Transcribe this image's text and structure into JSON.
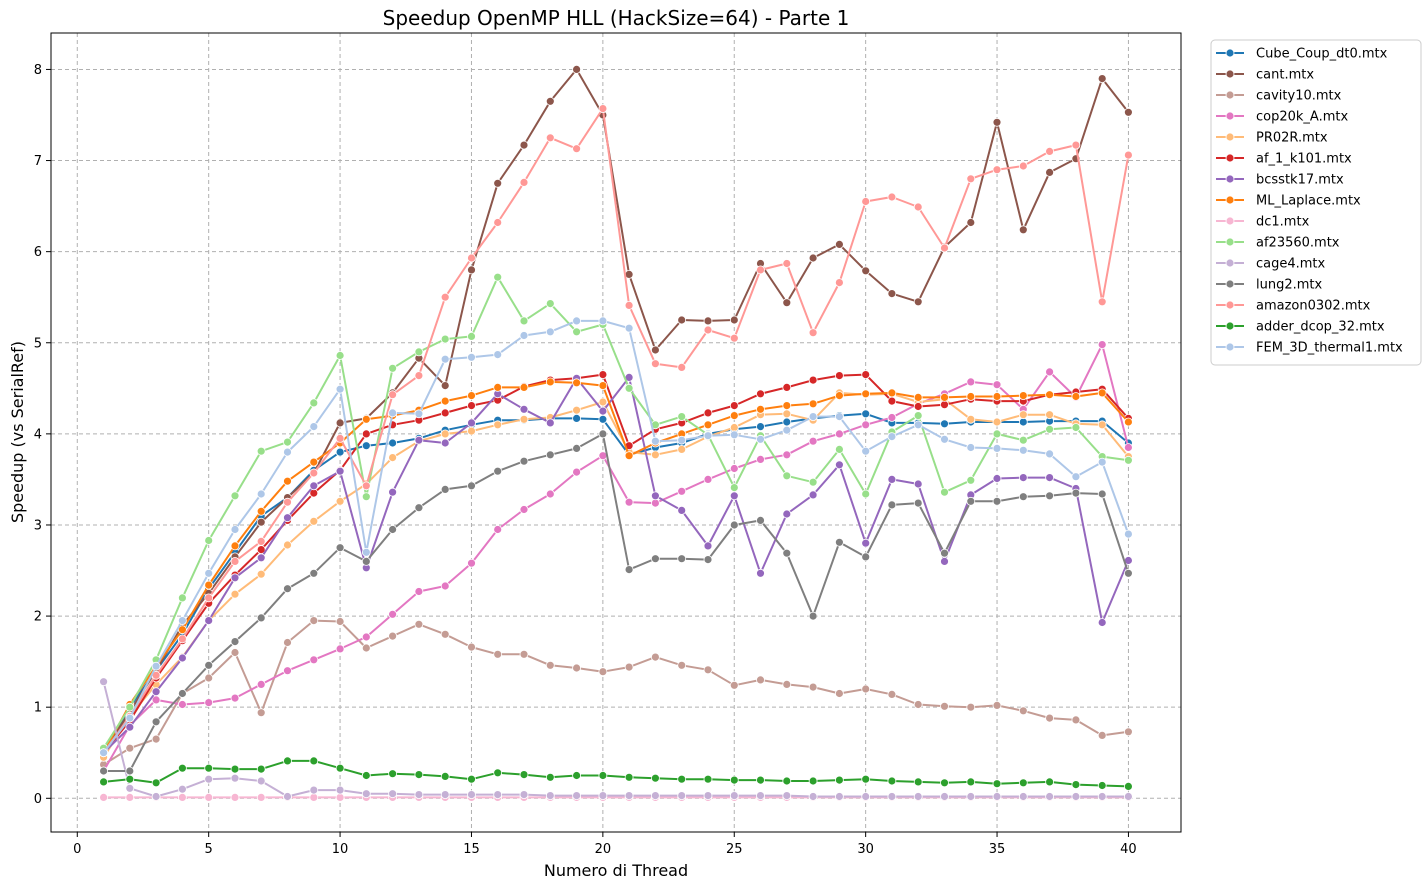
{
  "chart_data": {
    "type": "line",
    "title": "Speedup OpenMP HLL (HackSize=64) - Parte 1",
    "xlabel": "Numero di Thread",
    "ylabel": "Speedup (vs SerialRef)",
    "xlim": [
      -1,
      42
    ],
    "ylim": [
      -0.37,
      8.4
    ],
    "xticks": [
      0,
      5,
      10,
      15,
      20,
      25,
      30,
      35,
      40
    ],
    "yticks": [
      0,
      1,
      2,
      3,
      4,
      5,
      6,
      7,
      8
    ],
    "grid": true,
    "legend_position": "outside-right",
    "x": [
      1,
      2,
      3,
      4,
      5,
      6,
      7,
      8,
      9,
      10,
      11,
      12,
      13,
      14,
      15,
      16,
      17,
      18,
      19,
      20,
      21,
      22,
      23,
      24,
      25,
      26,
      27,
      28,
      29,
      30,
      31,
      32,
      33,
      34,
      35,
      36,
      37,
      38,
      39,
      40
    ],
    "series": [
      {
        "name": "Cube_Coup_dt0.mtx",
        "color": "#1f77b4",
        "values": [
          0.5,
          1.0,
          1.4,
          1.8,
          2.3,
          2.7,
          3.1,
          3.3,
          3.6,
          3.8,
          3.87,
          3.9,
          3.95,
          4.04,
          4.1,
          4.15,
          4.15,
          4.17,
          4.17,
          4.16,
          3.77,
          3.85,
          3.9,
          4.0,
          4.05,
          4.08,
          4.13,
          4.17,
          4.2,
          4.22,
          4.12,
          4.12,
          4.11,
          4.13,
          4.13,
          4.13,
          4.14,
          4.14,
          4.14,
          3.9
        ]
      },
      {
        "name": "cant.mtx",
        "color": "#8c564b",
        "values": [
          0.5,
          0.95,
          1.4,
          1.9,
          2.25,
          2.65,
          3.03,
          3.3,
          3.57,
          4.12,
          4.17,
          4.45,
          4.83,
          4.53,
          5.8,
          6.75,
          7.17,
          7.65,
          8.0,
          7.5,
          5.75,
          4.92,
          5.25,
          5.24,
          5.25,
          5.87,
          5.44,
          5.93,
          6.08,
          5.79,
          5.54,
          5.45,
          6.05,
          6.32,
          7.42,
          6.24,
          6.87,
          7.02,
          7.9,
          7.53
        ]
      },
      {
        "name": "cavity10.mtx",
        "color": "#c49c94",
        "values": [
          0.37,
          0.55,
          0.65,
          1.15,
          1.32,
          1.6,
          0.94,
          1.71,
          1.95,
          1.94,
          1.65,
          1.78,
          1.91,
          1.8,
          1.66,
          1.58,
          1.58,
          1.46,
          1.43,
          1.39,
          1.44,
          1.55,
          1.46,
          1.41,
          1.24,
          1.3,
          1.25,
          1.22,
          1.15,
          1.2,
          1.14,
          1.03,
          1.01,
          1.0,
          1.02,
          0.96,
          0.88,
          0.86,
          0.69,
          0.73
        ]
      },
      {
        "name": "cop20k_A.mtx",
        "color": "#e377c2",
        "values": [
          0.3,
          0.8,
          1.08,
          1.03,
          1.05,
          1.1,
          1.25,
          1.4,
          1.52,
          1.64,
          1.77,
          2.02,
          2.27,
          2.33,
          2.58,
          2.95,
          3.17,
          3.34,
          3.58,
          3.76,
          3.25,
          3.24,
          3.37,
          3.5,
          3.62,
          3.72,
          3.77,
          3.92,
          4.0,
          4.1,
          4.18,
          4.33,
          4.44,
          4.57,
          4.54,
          4.27,
          4.68,
          4.4,
          4.98,
          3.85
        ]
      },
      {
        "name": "PR02R.mtx",
        "color": "#ffbb78",
        "values": [
          0.45,
          0.9,
          1.25,
          1.55,
          1.95,
          2.24,
          2.46,
          2.78,
          3.04,
          3.26,
          3.45,
          3.74,
          3.92,
          4.0,
          4.03,
          4.1,
          4.16,
          4.18,
          4.26,
          4.35,
          3.8,
          3.77,
          3.83,
          3.97,
          4.07,
          4.21,
          4.22,
          4.15,
          4.45,
          4.43,
          4.44,
          4.35,
          4.38,
          4.16,
          4.13,
          4.21,
          4.21,
          4.11,
          4.1,
          3.75
        ]
      },
      {
        "name": "af_1_k101.mtx",
        "color": "#d62728",
        "values": [
          0.5,
          0.85,
          1.32,
          1.73,
          2.14,
          2.45,
          2.73,
          3.05,
          3.35,
          3.6,
          4.0,
          4.1,
          4.15,
          4.23,
          4.31,
          4.37,
          4.52,
          4.59,
          4.61,
          4.65,
          3.87,
          4.05,
          4.12,
          4.23,
          4.31,
          4.44,
          4.51,
          4.59,
          4.64,
          4.65,
          4.36,
          4.3,
          4.32,
          4.38,
          4.36,
          4.36,
          4.43,
          4.46,
          4.49,
          4.17
        ]
      },
      {
        "name": "bcsstk17.mtx",
        "color": "#9467bd",
        "values": [
          0.5,
          0.78,
          1.17,
          1.54,
          1.95,
          2.42,
          2.64,
          3.08,
          3.43,
          3.59,
          2.53,
          3.36,
          3.93,
          3.9,
          4.12,
          4.44,
          4.27,
          4.12,
          4.61,
          4.25,
          4.62,
          3.32,
          3.16,
          2.77,
          3.32,
          2.47,
          3.12,
          3.33,
          3.66,
          2.8,
          3.5,
          3.45,
          2.6,
          3.33,
          3.51,
          3.52,
          3.52,
          3.4,
          1.93,
          2.61
        ]
      },
      {
        "name": "ML_Laplace.mtx",
        "color": "#ff7f0e",
        "values": [
          0.5,
          1.03,
          1.45,
          1.85,
          2.34,
          2.77,
          3.15,
          3.48,
          3.69,
          3.9,
          4.16,
          4.2,
          4.26,
          4.36,
          4.42,
          4.51,
          4.51,
          4.57,
          4.56,
          4.53,
          3.76,
          3.9,
          4.0,
          4.1,
          4.2,
          4.27,
          4.31,
          4.33,
          4.42,
          4.44,
          4.45,
          4.4,
          4.4,
          4.41,
          4.41,
          4.42,
          4.43,
          4.41,
          4.45,
          4.13
        ]
      },
      {
        "name": "dc1.mtx",
        "color": "#f7b6d2",
        "values": [
          0.01,
          0.01,
          0.01,
          0.01,
          0.01,
          0.01,
          0.01,
          0.01,
          0.01,
          0.01,
          0.01,
          0.01,
          0.01,
          0.01,
          0.01,
          0.01,
          0.01,
          0.01,
          0.01,
          0.01,
          0.01,
          0.01,
          0.01,
          0.01,
          0.01,
          0.01,
          0.01,
          0.01,
          0.01,
          0.01,
          0.01,
          0.01,
          0.01,
          0.01,
          0.01,
          0.01,
          0.01,
          0.01,
          0.01,
          0.01
        ]
      },
      {
        "name": "af23560.mtx",
        "color": "#98df8a",
        "values": [
          0.55,
          1.0,
          1.52,
          2.2,
          2.83,
          3.32,
          3.81,
          3.91,
          4.34,
          4.86,
          3.31,
          4.72,
          4.9,
          5.04,
          5.07,
          5.72,
          5.24,
          5.43,
          5.12,
          5.2,
          4.5,
          4.1,
          4.19,
          3.99,
          3.41,
          3.98,
          3.54,
          3.47,
          3.83,
          3.34,
          4.02,
          4.2,
          3.36,
          3.49,
          4.0,
          3.93,
          4.05,
          4.07,
          3.75,
          3.71
        ]
      },
      {
        "name": "cage4.mtx",
        "color": "#c5b0d5",
        "values": [
          1.28,
          0.11,
          0.02,
          0.1,
          0.21,
          0.22,
          0.19,
          0.02,
          0.09,
          0.09,
          0.05,
          0.05,
          0.04,
          0.04,
          0.04,
          0.04,
          0.04,
          0.03,
          0.03,
          0.03,
          0.03,
          0.03,
          0.03,
          0.03,
          0.03,
          0.03,
          0.03,
          0.02,
          0.02,
          0.02,
          0.02,
          0.02,
          0.02,
          0.02,
          0.02,
          0.02,
          0.02,
          0.02,
          0.02,
          0.02
        ]
      },
      {
        "name": "lung2.mtx",
        "color": "#7f7f7f",
        "values": [
          0.3,
          0.3,
          0.84,
          1.15,
          1.46,
          1.72,
          1.98,
          2.3,
          2.47,
          2.75,
          2.6,
          2.95,
          3.19,
          3.39,
          3.43,
          3.59,
          3.7,
          3.77,
          3.84,
          4.0,
          2.51,
          2.63,
          2.63,
          2.62,
          3.0,
          3.05,
          2.69,
          2.0,
          2.81,
          2.65,
          3.22,
          3.24,
          2.69,
          3.26,
          3.26,
          3.31,
          3.32,
          3.35,
          3.34,
          2.47
        ]
      },
      {
        "name": "amazon0302.mtx",
        "color": "#ff9896",
        "values": [
          0.5,
          0.9,
          1.35,
          1.75,
          2.2,
          2.6,
          2.82,
          3.25,
          3.57,
          3.95,
          3.43,
          4.43,
          4.64,
          5.5,
          5.93,
          6.32,
          6.76,
          7.25,
          7.13,
          7.57,
          5.41,
          4.77,
          4.73,
          5.14,
          5.05,
          5.8,
          5.87,
          5.11,
          5.66,
          6.55,
          6.6,
          6.49,
          6.04,
          6.8,
          6.9,
          6.94,
          7.1,
          7.17,
          5.45,
          7.06
        ]
      },
      {
        "name": "adder_dcop_32.mtx",
        "color": "#2ca02c",
        "values": [
          0.18,
          0.21,
          0.17,
          0.33,
          0.33,
          0.32,
          0.32,
          0.41,
          0.41,
          0.33,
          0.25,
          0.27,
          0.26,
          0.24,
          0.21,
          0.28,
          0.26,
          0.23,
          0.25,
          0.25,
          0.23,
          0.22,
          0.21,
          0.21,
          0.2,
          0.2,
          0.19,
          0.19,
          0.2,
          0.21,
          0.19,
          0.18,
          0.17,
          0.18,
          0.16,
          0.17,
          0.18,
          0.15,
          0.14,
          0.13
        ]
      },
      {
        "name": "FEM_3D_thermal1.mtx",
        "color": "#aec7e8",
        "values": [
          0.5,
          0.88,
          1.45,
          1.95,
          2.47,
          2.95,
          3.34,
          3.8,
          4.08,
          4.49,
          2.7,
          4.23,
          4.22,
          4.82,
          4.84,
          4.87,
          5.08,
          5.12,
          5.24,
          5.24,
          5.16,
          3.92,
          3.93,
          3.98,
          3.99,
          3.94,
          4.04,
          4.19,
          4.19,
          3.81,
          3.97,
          4.1,
          3.94,
          3.85,
          3.84,
          3.82,
          3.78,
          3.53,
          3.69,
          2.9
        ]
      }
    ]
  }
}
